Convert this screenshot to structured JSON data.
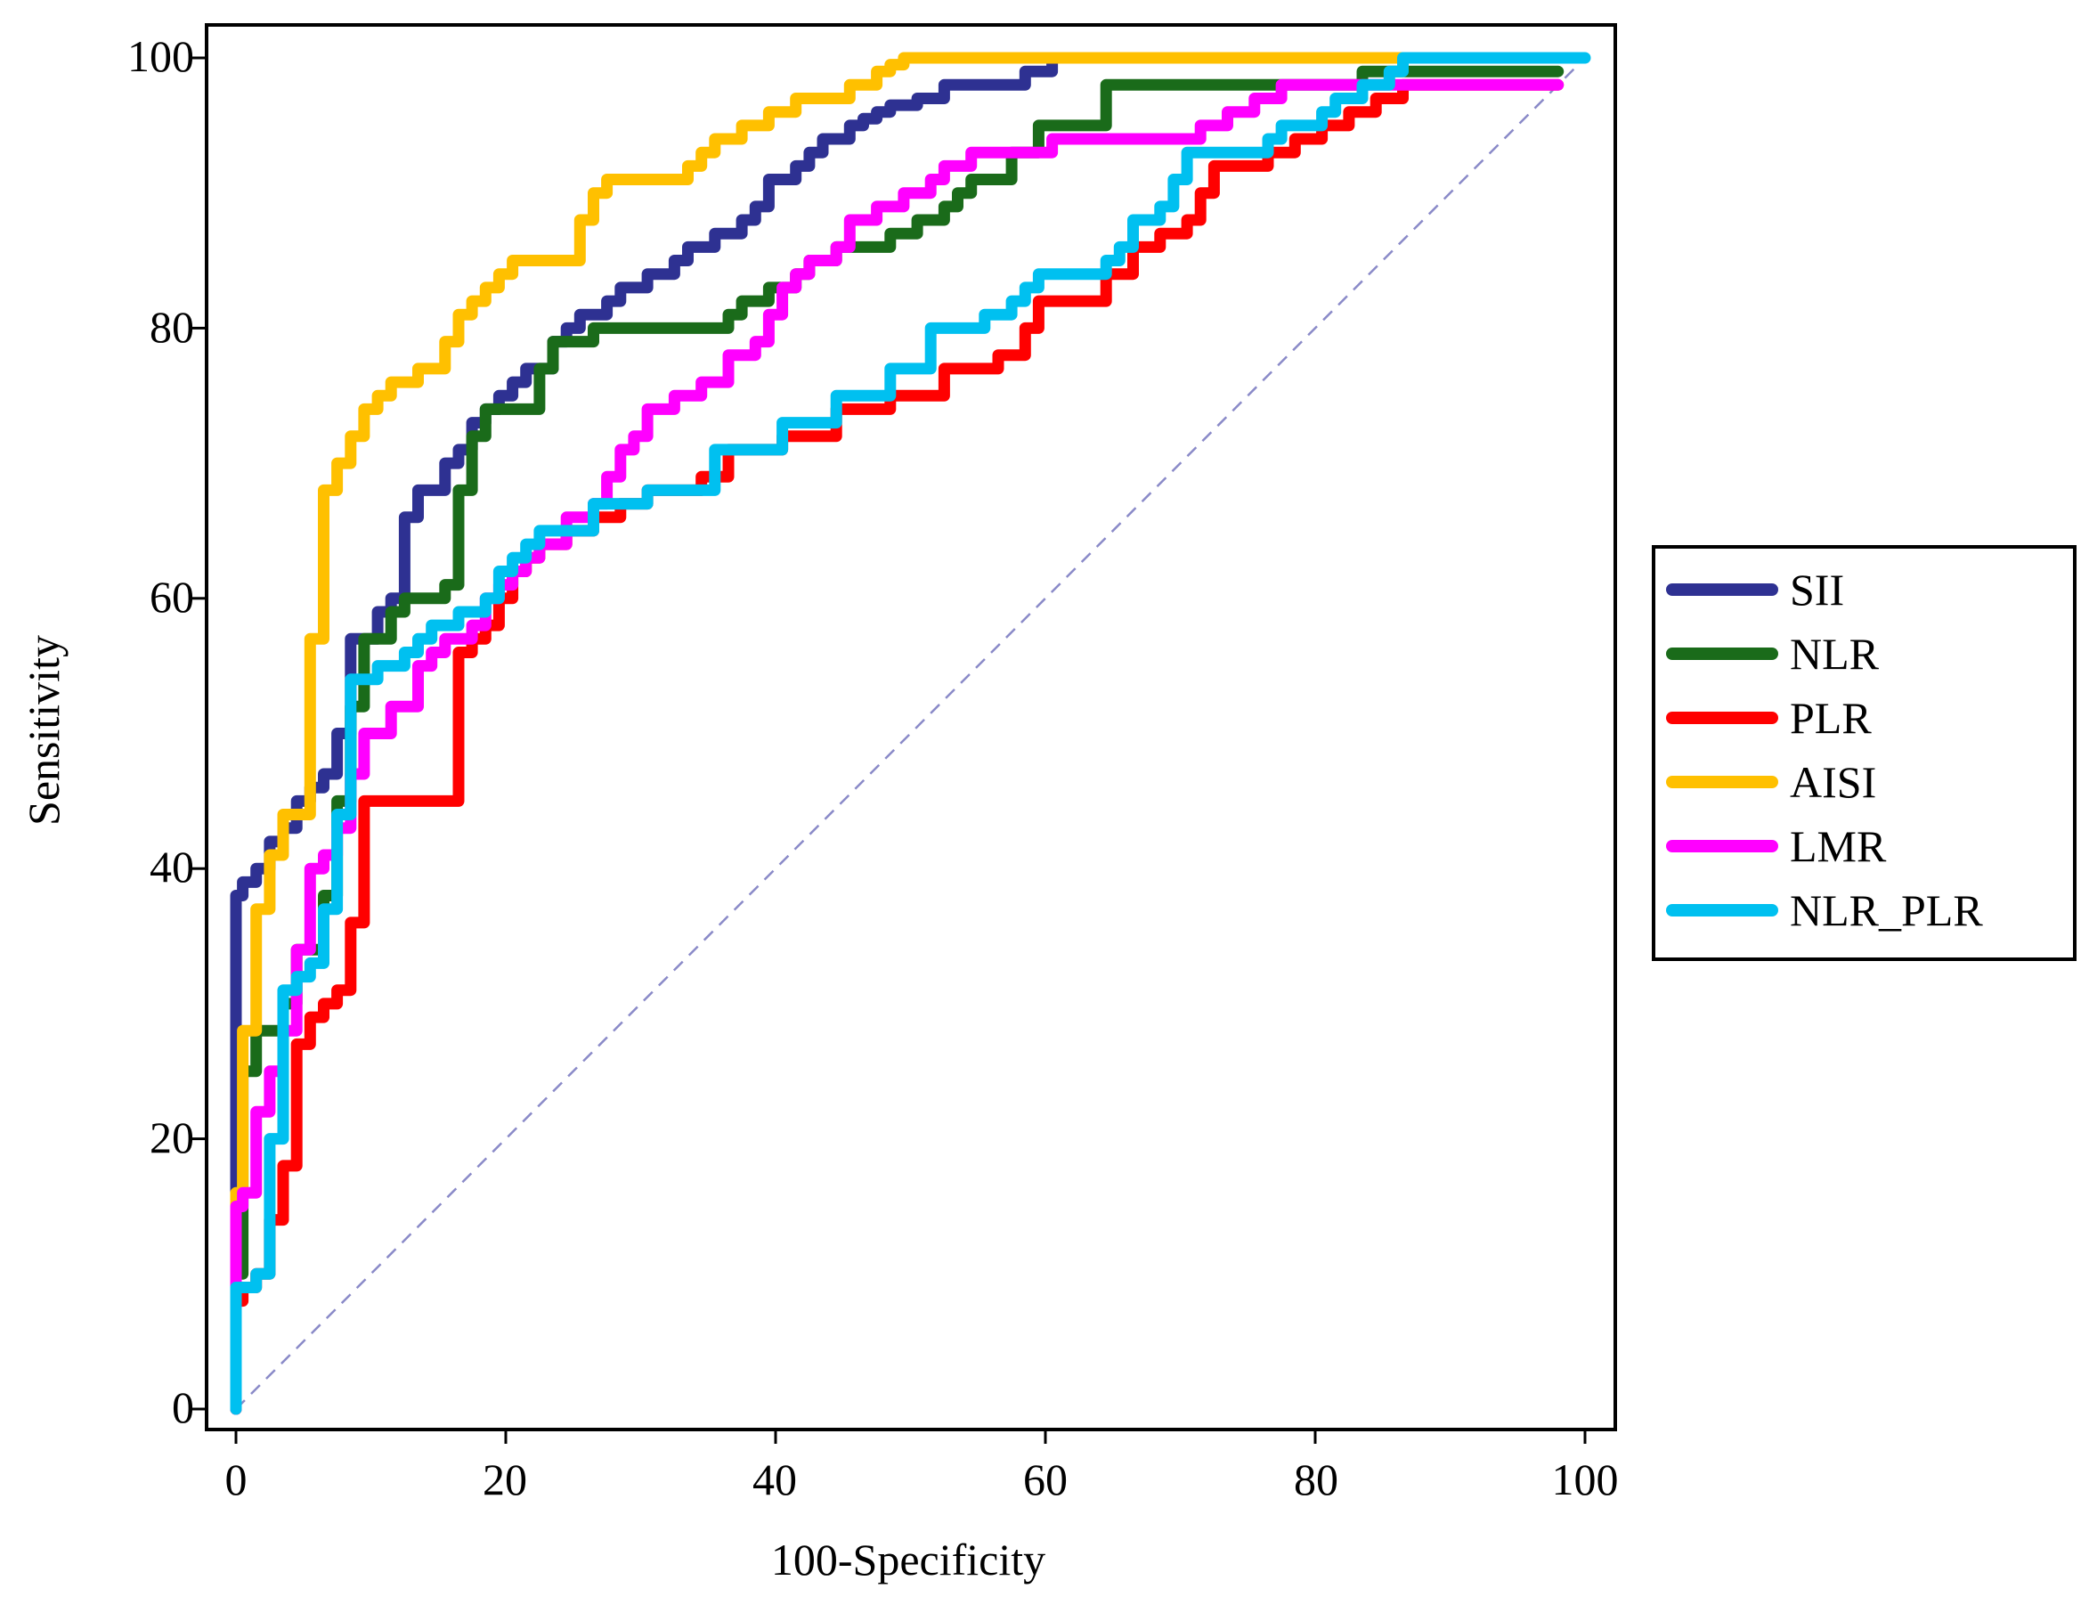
{
  "chart_data": {
    "type": "line",
    "title": "",
    "xlabel": "100-Specificity",
    "ylabel": "Sensitivity",
    "xlim": [
      0,
      100
    ],
    "ylim": [
      0,
      100
    ],
    "xticks": [
      "0",
      "20",
      "40",
      "60",
      "80",
      "100"
    ],
    "yticks": [
      "0",
      "20",
      "40",
      "60",
      "80",
      "100"
    ],
    "legend_position": "right",
    "reference_line": {
      "name": "chance",
      "x": [
        0,
        100
      ],
      "y": [
        0,
        100
      ],
      "color": "#8a8ac8",
      "style": "dashed"
    },
    "series": [
      {
        "name": "SII",
        "color": "#2e3192",
        "x": [
          0,
          0,
          0.5,
          0.5,
          1.5,
          1.5,
          2.5,
          2.5,
          3.5,
          3.5,
          4.5,
          4.5,
          5.5,
          5.5,
          6.5,
          6.5,
          7.5,
          7.5,
          8.5,
          8.5,
          10.5,
          10.5,
          11.5,
          11.5,
          12.5,
          12.5,
          13.5,
          13.5,
          15.5,
          15.5,
          16.5,
          16.5,
          17.5,
          17.5,
          18.5,
          18.5,
          19.5,
          19.5,
          20.5,
          20.5,
          21.5,
          21.5,
          23.5,
          23.5,
          24.5,
          24.5,
          25.5,
          25.5,
          27.5,
          27.5,
          28.5,
          28.5,
          30.5,
          30.5,
          32.5,
          32.5,
          33.5,
          33.5,
          35.5,
          35.5,
          37.5,
          37.5,
          38.5,
          38.5,
          39.5,
          39.5,
          41.5,
          41.5,
          42.5,
          42.5,
          43.5,
          43.5,
          45.5,
          45.5,
          46.5,
          46.5,
          47.5,
          47.5,
          48.5,
          48.5,
          50.5,
          50.5,
          52.5,
          52.5,
          58.5,
          58.5,
          60.5,
          60.5,
          61.5
        ],
        "y": [
          0,
          38,
          38,
          39,
          39,
          40,
          40,
          42,
          42,
          43,
          43,
          45,
          45,
          46,
          46,
          47,
          47,
          50,
          50,
          57,
          57,
          59,
          59,
          60,
          60,
          66,
          66,
          68,
          68,
          70,
          70,
          71,
          71,
          73,
          73,
          74,
          74,
          75,
          75,
          76,
          76,
          77,
          77,
          79,
          79,
          80,
          80,
          81,
          81,
          82,
          82,
          83,
          83,
          84,
          84,
          85,
          85,
          86,
          86,
          87,
          87,
          88,
          88,
          89,
          89,
          91,
          91,
          92,
          92,
          93,
          93,
          94,
          94,
          95,
          95,
          95.5,
          95.5,
          96,
          96,
          96.5,
          96.5,
          97,
          97,
          98,
          98,
          99,
          99,
          100,
          100
        ]
      },
      {
        "name": "NLR",
        "color": "#1a6b1a",
        "x": [
          0,
          0,
          0.5,
          0.5,
          1.5,
          1.5,
          3.5,
          3.5,
          4.5,
          4.5,
          6.5,
          6.5,
          7.5,
          7.5,
          8.5,
          8.5,
          9.5,
          9.5,
          11.5,
          11.5,
          12.5,
          12.5,
          15.5,
          15.5,
          16.5,
          16.5,
          17.5,
          17.5,
          18.5,
          18.5,
          22.5,
          22.5,
          23.5,
          23.5,
          26.5,
          26.5,
          36.5,
          36.5,
          37.5,
          37.5,
          39.5,
          39.5,
          41.5,
          41.5,
          42.5,
          42.5,
          44.5,
          44.5,
          48.5,
          48.5,
          50.5,
          50.5,
          52.5,
          52.5,
          53.5,
          53.5,
          54.5,
          54.5,
          57.5,
          57.5,
          59.5,
          59.5,
          64.5,
          64.5,
          83.5,
          83.5,
          98
        ],
        "y": [
          0,
          10,
          10,
          25,
          25,
          28,
          28,
          30,
          30,
          34,
          34,
          38,
          38,
          45,
          45,
          52,
          52,
          57,
          57,
          59,
          59,
          60,
          60,
          61,
          61,
          68,
          68,
          72,
          72,
          74,
          74,
          77,
          77,
          79,
          79,
          80,
          80,
          81,
          81,
          82,
          82,
          83,
          83,
          84,
          84,
          85,
          85,
          86,
          86,
          87,
          87,
          88,
          88,
          89,
          89,
          90,
          90,
          91,
          91,
          93,
          93,
          95,
          95,
          98,
          98,
          99,
          99
        ]
      },
      {
        "name": "PLR",
        "color": "#ff0000",
        "x": [
          0,
          0,
          0.5,
          0.5,
          1.5,
          1.5,
          2.5,
          2.5,
          3.5,
          3.5,
          4.5,
          4.5,
          5.5,
          5.5,
          6.5,
          6.5,
          7.5,
          7.5,
          8.5,
          8.5,
          9.5,
          9.5,
          16.5,
          16.5,
          17.5,
          17.5,
          18.5,
          18.5,
          19.5,
          19.5,
          20.5,
          20.5,
          21.5,
          21.5,
          22.5,
          22.5,
          24.5,
          24.5,
          26.5,
          26.5,
          28.5,
          28.5,
          30.5,
          30.5,
          34.5,
          34.5,
          36.5,
          36.5,
          40.5,
          40.5,
          44.5,
          44.5,
          48.5,
          48.5,
          52.5,
          52.5,
          56.5,
          56.5,
          58.5,
          58.5,
          59.5,
          59.5,
          64.5,
          64.5,
          66.5,
          66.5,
          68.5,
          68.5,
          70.5,
          70.5,
          71.5,
          71.5,
          72.5,
          72.5,
          76.5,
          76.5,
          78.5,
          78.5,
          80.5,
          80.5,
          82.5,
          82.5,
          84.5,
          84.5,
          86.5,
          86.5,
          98
        ],
        "y": [
          0,
          8,
          8,
          9,
          9,
          10,
          10,
          14,
          14,
          18,
          18,
          27,
          27,
          29,
          29,
          30,
          30,
          31,
          31,
          36,
          36,
          45,
          45,
          56,
          56,
          57,
          57,
          58,
          58,
          60,
          60,
          62,
          62,
          63,
          63,
          64,
          64,
          65,
          65,
          66,
          66,
          67,
          67,
          68,
          68,
          69,
          69,
          71,
          71,
          72,
          72,
          74,
          74,
          75,
          75,
          77,
          77,
          78,
          78,
          80,
          80,
          82,
          82,
          84,
          84,
          86,
          86,
          87,
          87,
          88,
          88,
          90,
          90,
          92,
          92,
          93,
          93,
          94,
          94,
          95,
          95,
          96,
          96,
          97,
          97,
          98,
          98
        ]
      },
      {
        "name": "AISI",
        "color": "#ffc000",
        "x": [
          0,
          0,
          0.5,
          0.5,
          1.5,
          1.5,
          2.5,
          2.5,
          3.5,
          3.5,
          5.5,
          5.5,
          6.5,
          6.5,
          7.5,
          7.5,
          8.5,
          8.5,
          9.5,
          9.5,
          10.5,
          10.5,
          11.5,
          11.5,
          13.5,
          13.5,
          15.5,
          15.5,
          16.5,
          16.5,
          17.5,
          17.5,
          18.5,
          18.5,
          19.5,
          19.5,
          20.5,
          20.5,
          25.5,
          25.5,
          26.5,
          26.5,
          27.5,
          27.5,
          33.5,
          33.5,
          34.5,
          34.5,
          35.5,
          35.5,
          37.5,
          37.5,
          39.5,
          39.5,
          41.5,
          41.5,
          45.5,
          45.5,
          47.5,
          47.5,
          48.5,
          48.5,
          49.5,
          49.5,
          98
        ],
        "y": [
          0,
          16,
          16,
          28,
          28,
          37,
          37,
          41,
          41,
          44,
          44,
          57,
          57,
          68,
          68,
          70,
          70,
          72,
          72,
          74,
          74,
          75,
          75,
          76,
          76,
          77,
          77,
          79,
          79,
          81,
          81,
          82,
          82,
          83,
          83,
          84,
          84,
          85,
          85,
          88,
          88,
          90,
          90,
          91,
          91,
          92,
          92,
          93,
          93,
          94,
          94,
          95,
          95,
          96,
          96,
          97,
          97,
          98,
          98,
          99,
          99,
          99.5,
          99.5,
          100,
          100
        ]
      },
      {
        "name": "LMR",
        "color": "#ff00ff",
        "x": [
          0,
          0,
          0.5,
          0.5,
          1.5,
          1.5,
          2.5,
          2.5,
          3.5,
          3.5,
          4.5,
          4.5,
          5.5,
          5.5,
          6.5,
          6.5,
          7.5,
          7.5,
          8.5,
          8.5,
          9.5,
          9.5,
          11.5,
          11.5,
          13.5,
          13.5,
          14.5,
          14.5,
          15.5,
          15.5,
          17.5,
          17.5,
          18.5,
          18.5,
          19.5,
          19.5,
          20.5,
          20.5,
          21.5,
          21.5,
          22.5,
          22.5,
          24.5,
          24.5,
          26.5,
          26.5,
          27.5,
          27.5,
          28.5,
          28.5,
          29.5,
          29.5,
          30.5,
          30.5,
          32.5,
          32.5,
          34.5,
          34.5,
          36.5,
          36.5,
          38.5,
          38.5,
          39.5,
          39.5,
          40.5,
          40.5,
          41.5,
          41.5,
          42.5,
          42.5,
          44.5,
          44.5,
          45.5,
          45.5,
          47.5,
          47.5,
          49.5,
          49.5,
          51.5,
          51.5,
          52.5,
          52.5,
          54.5,
          54.5,
          60.5,
          60.5,
          71.5,
          71.5,
          73.5,
          73.5,
          75.5,
          75.5,
          77.5,
          77.5,
          98
        ],
        "y": [
          0,
          15,
          15,
          16,
          16,
          22,
          22,
          25,
          25,
          28,
          28,
          34,
          34,
          40,
          40,
          41,
          41,
          43,
          43,
          47,
          47,
          50,
          50,
          52,
          52,
          55,
          55,
          56,
          56,
          57,
          57,
          58,
          58,
          60,
          60,
          61,
          61,
          62,
          62,
          63,
          63,
          64,
          64,
          66,
          66,
          67,
          67,
          69,
          69,
          71,
          71,
          72,
          72,
          74,
          74,
          75,
          75,
          76,
          76,
          78,
          78,
          79,
          79,
          81,
          81,
          83,
          83,
          84,
          84,
          85,
          85,
          86,
          86,
          88,
          88,
          89,
          89,
          90,
          90,
          91,
          91,
          92,
          92,
          93,
          93,
          94,
          94,
          95,
          95,
          96,
          96,
          97,
          97,
          98,
          98
        ]
      },
      {
        "name": "NLR_PLR",
        "color": "#00c0f0",
        "x": [
          0,
          0,
          1.5,
          1.5,
          2.5,
          2.5,
          3.5,
          3.5,
          4.5,
          4.5,
          5.5,
          5.5,
          6.5,
          6.5,
          7.5,
          7.5,
          8.5,
          8.5,
          10.5,
          10.5,
          12.5,
          12.5,
          13.5,
          13.5,
          14.5,
          14.5,
          16.5,
          16.5,
          18.5,
          18.5,
          19.5,
          19.5,
          20.5,
          20.5,
          21.5,
          21.5,
          22.5,
          22.5,
          26.5,
          26.5,
          30.5,
          30.5,
          35.5,
          35.5,
          40.5,
          40.5,
          44.5,
          44.5,
          48.5,
          48.5,
          51.5,
          51.5,
          55.5,
          55.5,
          57.5,
          57.5,
          58.5,
          58.5,
          59.5,
          59.5,
          64.5,
          64.5,
          65.5,
          65.5,
          66.5,
          66.5,
          68.5,
          68.5,
          69.5,
          69.5,
          70.5,
          70.5,
          76.5,
          76.5,
          77.5,
          77.5,
          80.5,
          80.5,
          81.5,
          81.5,
          83.5,
          83.5,
          85.5,
          85.5,
          86.5,
          86.5,
          100
        ],
        "y": [
          0,
          9,
          9,
          10,
          10,
          20,
          20,
          31,
          31,
          32,
          32,
          33,
          33,
          37,
          37,
          44,
          44,
          54,
          54,
          55,
          55,
          56,
          56,
          57,
          57,
          58,
          58,
          59,
          59,
          60,
          60,
          62,
          62,
          63,
          63,
          64,
          64,
          65,
          65,
          67,
          67,
          68,
          68,
          71,
          71,
          73,
          73,
          75,
          75,
          77,
          77,
          80,
          80,
          81,
          81,
          82,
          82,
          83,
          83,
          84,
          84,
          85,
          85,
          86,
          86,
          88,
          88,
          89,
          89,
          91,
          91,
          93,
          93,
          94,
          94,
          95,
          95,
          96,
          96,
          97,
          97,
          98,
          98,
          99,
          99,
          100,
          100
        ]
      }
    ]
  }
}
